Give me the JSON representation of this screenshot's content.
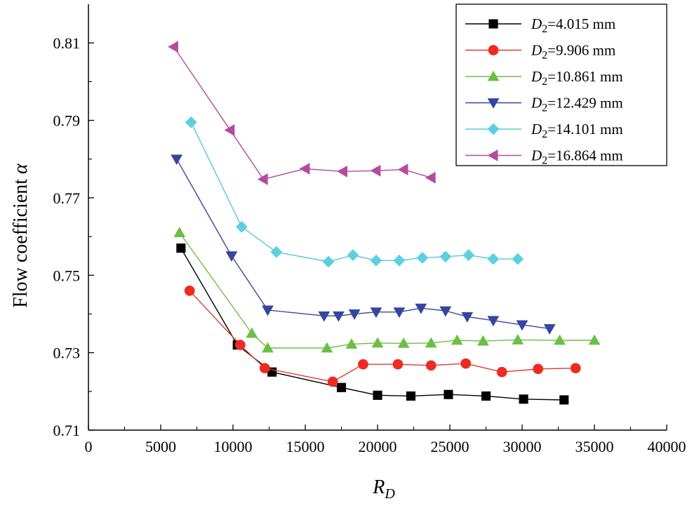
{
  "chart_data": {
    "type": "line",
    "title": "",
    "xlabel": "R",
    "xlabel_subscript": "D",
    "ylabel": "Flow coefficient",
    "ylabel_symbol": "α",
    "xlim": [
      0,
      40000
    ],
    "ylim": [
      0.71,
      0.82
    ],
    "xticks": [
      0,
      5000,
      10000,
      15000,
      20000,
      25000,
      30000,
      35000,
      40000
    ],
    "yticks": [
      0.71,
      0.73,
      0.75,
      0.77,
      0.79,
      0.81
    ],
    "xtick_labels": [
      "0",
      "5000",
      "10000",
      "15000",
      "20000",
      "25000",
      "30000",
      "35000",
      "40000"
    ],
    "ytick_labels": [
      "0.71",
      "0.73",
      "0.75",
      "0.77",
      "0.79",
      "0.81"
    ],
    "grid": false,
    "legend_position": "top-right",
    "series": [
      {
        "name": "D2=4.015 mm",
        "legend_prefix": "D",
        "legend_sub": "2",
        "legend_suffix": "=4.015 mm",
        "marker": "square",
        "line_color": "#000000",
        "marker_color": "#000000",
        "x": [
          6400,
          10300,
          12700,
          17500,
          20000,
          22300,
          24900,
          27500,
          30100,
          32900
        ],
        "y": [
          0.757,
          0.732,
          0.725,
          0.721,
          0.719,
          0.7188,
          0.7192,
          0.7188,
          0.718,
          0.7178
        ]
      },
      {
        "name": "D2=9.906 mm",
        "legend_prefix": "D",
        "legend_sub": "2",
        "legend_suffix": "=9.906 mm",
        "marker": "circle",
        "line_color": "#e03a2c",
        "marker_color": "#ee2a22",
        "x": [
          7000,
          10500,
          12200,
          16900,
          19000,
          21400,
          23700,
          26100,
          28600,
          31100,
          33700
        ],
        "y": [
          0.746,
          0.732,
          0.726,
          0.7225,
          0.727,
          0.727,
          0.7267,
          0.7272,
          0.725,
          0.7258,
          0.726
        ]
      },
      {
        "name": "D2=10.861 mm",
        "legend_prefix": "D",
        "legend_sub": "2",
        "legend_suffix": "=10.861 mm",
        "marker": "triangle-up",
        "line_color": "#6cbf45",
        "marker_color": "#6cbf45",
        "x": [
          6300,
          11300,
          12400,
          16500,
          18200,
          20000,
          21800,
          23700,
          25500,
          27300,
          29700,
          32600,
          35000
        ],
        "y": [
          0.761,
          0.735,
          0.7312,
          0.7312,
          0.7322,
          0.7325,
          0.7324,
          0.7325,
          0.7332,
          0.733,
          0.7333,
          0.7332,
          0.7332
        ]
      },
      {
        "name": "D2=12.429 mm",
        "legend_prefix": "D",
        "legend_sub": "2",
        "legend_suffix": "=12.429 mm",
        "marker": "triangle-down",
        "line_color": "#3645a0",
        "marker_color": "#3645a0",
        "x": [
          6100,
          9900,
          12400,
          16300,
          17300,
          18400,
          19900,
          21500,
          23000,
          24700,
          26200,
          28000,
          30000,
          31900
        ],
        "y": [
          0.78,
          0.755,
          0.741,
          0.7395,
          0.7395,
          0.74,
          0.7405,
          0.7405,
          0.7415,
          0.7408,
          0.7393,
          0.7383,
          0.7372,
          0.7362
        ]
      },
      {
        "name": "D2=14.101 mm",
        "legend_prefix": "D",
        "legend_sub": "2",
        "legend_suffix": "=14.101 mm",
        "marker": "diamond",
        "line_color": "#56c7dc",
        "marker_color": "#5ccfe0",
        "x": [
          7100,
          10600,
          13000,
          16600,
          18300,
          19900,
          21500,
          23100,
          24700,
          26300,
          28000,
          29700
        ],
        "y": [
          0.7895,
          0.7625,
          0.756,
          0.7535,
          0.7552,
          0.7538,
          0.7538,
          0.7545,
          0.7548,
          0.7552,
          0.7542,
          0.7542
        ]
      },
      {
        "name": "D2=16.864 mm",
        "legend_prefix": "D",
        "legend_sub": "2",
        "legend_suffix": "=16.864 mm",
        "marker": "triangle-left",
        "line_color": "#b54aa0",
        "marker_color": "#b54aa0",
        "x": [
          5900,
          9800,
          12100,
          15000,
          17600,
          19900,
          21800,
          23700
        ],
        "y": [
          0.809,
          0.7875,
          0.7748,
          0.7775,
          0.7768,
          0.777,
          0.7773,
          0.7752
        ]
      }
    ]
  }
}
